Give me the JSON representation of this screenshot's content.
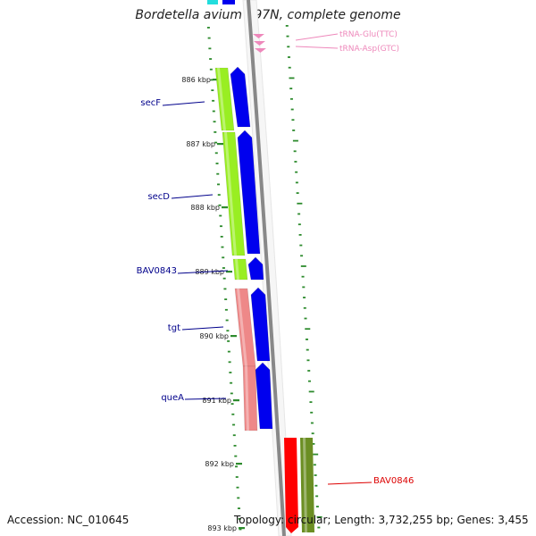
{
  "title": "Bordetella avium 197N, complete genome",
  "accession": "Accession: NC_010645",
  "summary": "Topology: circular; Length: 3,732,255 bp; Genes: 3,455",
  "colors": {
    "backbone": "#888888",
    "cds_forward": "#0000ee",
    "gene_forward": "#99ee22",
    "gene_forward_pink": "#ee8888",
    "cds_reverse_red": "#ff0000",
    "gene_reverse_olive": "#6b8e23",
    "trna": "#ee88bb",
    "tick": "#2e8b2e",
    "gene_label": "#00008b",
    "red_label": "#dd0000",
    "trna_label": "#ee88bb"
  },
  "scale_labels": [
    "886 kbp",
    "887 kbp",
    "888 kbp",
    "889 kbp",
    "890 kbp",
    "891 kbp",
    "892 kbp",
    "893 kbp"
  ],
  "gene_labels": [
    {
      "text": "secF",
      "color_key": "gene_label"
    },
    {
      "text": "secD",
      "color_key": "gene_label"
    },
    {
      "text": "BAV0843",
      "color_key": "gene_label"
    },
    {
      "text": "tgt",
      "color_key": "gene_label"
    },
    {
      "text": "queA",
      "color_key": "gene_label"
    },
    {
      "text": "BAV0846",
      "color_key": "red_label"
    }
  ],
  "trna_labels": [
    "tRNA-Glu(TTC)",
    "tRNA-Asp(GTC)"
  ]
}
